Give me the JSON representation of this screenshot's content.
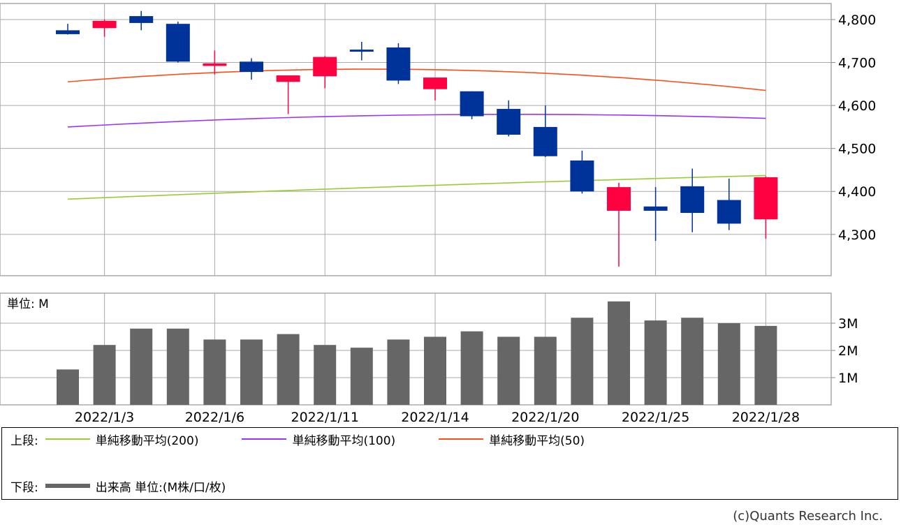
{
  "colors": {
    "up": "#ff0040",
    "down": "#003399",
    "volume": "#666666",
    "grid": "#aaaaaa",
    "ma200": "#99cc33",
    "ma100": "#9933ff",
    "ma50": "#ff4d1a"
  },
  "chart_data": {
    "type": "candlestick",
    "price_axis": {
      "ticks": [
        4300,
        4400,
        4500,
        4600,
        4700,
        4800
      ],
      "tick_labels": [
        "4,300",
        "4,400",
        "4,500",
        "4,600",
        "4,700",
        "4,800"
      ]
    },
    "volume_axis": {
      "unit_label": "単位: M",
      "ticks": [
        1,
        2,
        3
      ],
      "tick_labels": [
        "1M",
        "2M",
        "3M"
      ]
    },
    "x_labels": [
      {
        "index": 1,
        "label": "2022/1/3"
      },
      {
        "index": 4,
        "label": "2022/1/6"
      },
      {
        "index": 7,
        "label": "2022/1/11"
      },
      {
        "index": 10,
        "label": "2022/1/14"
      },
      {
        "index": 13,
        "label": "2022/1/20"
      },
      {
        "index": 16,
        "label": "2022/1/25"
      },
      {
        "index": 19,
        "label": "2022/1/28"
      }
    ],
    "candles": [
      {
        "open": 4775,
        "high": 4790,
        "low": 4765,
        "close": 4766,
        "volume": 1.3
      },
      {
        "open": 4780,
        "high": 4800,
        "low": 4760,
        "close": 4797,
        "volume": 2.2
      },
      {
        "open": 4808,
        "high": 4820,
        "low": 4775,
        "close": 4792,
        "volume": 2.8
      },
      {
        "open": 4790,
        "high": 4795,
        "low": 4700,
        "close": 4702,
        "volume": 2.8
      },
      {
        "open": 4692,
        "high": 4728,
        "low": 4672,
        "close": 4698,
        "volume": 2.4
      },
      {
        "open": 4702,
        "high": 4710,
        "low": 4660,
        "close": 4678,
        "volume": 2.4
      },
      {
        "open": 4655,
        "high": 4670,
        "low": 4580,
        "close": 4670,
        "volume": 2.6
      },
      {
        "open": 4668,
        "high": 4715,
        "low": 4640,
        "close": 4713,
        "volume": 2.2
      },
      {
        "open": 4730,
        "high": 4748,
        "low": 4705,
        "close": 4727,
        "volume": 2.1
      },
      {
        "open": 4735,
        "high": 4745,
        "low": 4650,
        "close": 4658,
        "volume": 2.4
      },
      {
        "open": 4638,
        "high": 4665,
        "low": 4612,
        "close": 4665,
        "volume": 2.5
      },
      {
        "open": 4633,
        "high": 4633,
        "low": 4568,
        "close": 4575,
        "volume": 2.7
      },
      {
        "open": 4592,
        "high": 4612,
        "low": 4528,
        "close": 4532,
        "volume": 2.5
      },
      {
        "open": 4550,
        "high": 4600,
        "low": 4480,
        "close": 4482,
        "volume": 2.5
      },
      {
        "open": 4472,
        "high": 4495,
        "low": 4395,
        "close": 4400,
        "volume": 3.2
      },
      {
        "open": 4355,
        "high": 4420,
        "low": 4225,
        "close": 4410,
        "volume": 3.8
      },
      {
        "open": 4365,
        "high": 4410,
        "low": 4285,
        "close": 4355,
        "volume": 3.1
      },
      {
        "open": 4412,
        "high": 4453,
        "low": 4305,
        "close": 4350,
        "volume": 3.2
      },
      {
        "open": 4380,
        "high": 4430,
        "low": 4310,
        "close": 4325,
        "volume": 3.0
      },
      {
        "open": 4335,
        "high": 4435,
        "low": 4290,
        "close": 4433,
        "volume": 2.9
      }
    ],
    "moving_averages": [
      {
        "key": "ma200",
        "start": 4382,
        "end": 4437
      },
      {
        "key": "ma100",
        "start": 4550,
        "end": 4570,
        "mid": 4578
      },
      {
        "key": "ma50",
        "start": 4655,
        "end": 4635,
        "mid": 4684
      }
    ]
  },
  "legend": {
    "top_prefix": "上段:",
    "ma200_label": "単純移動平均(200)",
    "ma100_label": "単純移動平均(100)",
    "ma50_label": "単純移動平均(50)",
    "bottom_prefix": "下段:",
    "volume_label": "出来高 単位:(M株/口/枚)"
  },
  "copyright": "(c)Quants Research Inc."
}
